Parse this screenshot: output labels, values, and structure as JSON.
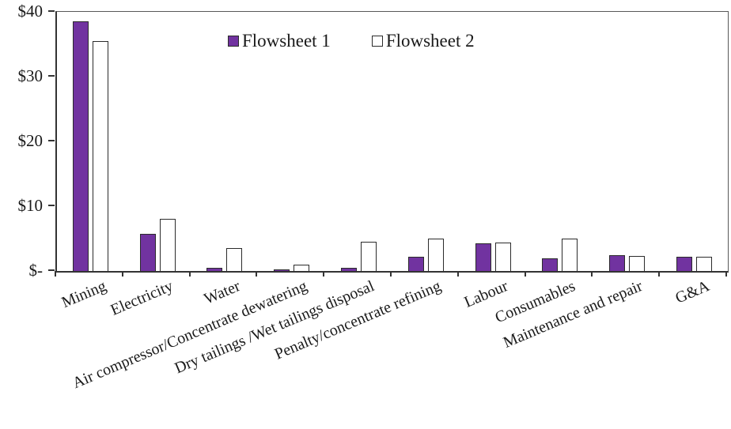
{
  "chart_data": {
    "type": "bar",
    "title": "",
    "xlabel": "",
    "ylabel": "",
    "ylim": [
      0,
      40
    ],
    "grid": false,
    "legend_position": "top-center",
    "yticks": [
      {
        "label": "$-",
        "value": 0
      },
      {
        "label": "$10",
        "value": 10
      },
      {
        "label": "$20",
        "value": 20
      },
      {
        "label": "$30",
        "value": 30
      },
      {
        "label": "$40",
        "value": 40
      }
    ],
    "categories": [
      "Mining",
      "Electricity",
      "Water",
      "Air compressor/Concentrate dewatering",
      "Dry tailings /Wet tailings disposal",
      "Penalty/concentrate refining",
      "Labour",
      "Consumables",
      "Maintenance and repair",
      "G&A"
    ],
    "series": [
      {
        "name": "Flowsheet 1",
        "color": "#7133A0",
        "values": [
          38.5,
          5.7,
          0.5,
          0.2,
          0.5,
          2.2,
          4.3,
          2.0,
          2.4,
          2.2
        ]
      },
      {
        "name": "Flowsheet 2",
        "color": "#FFFFFF",
        "values": [
          35.5,
          8.0,
          3.5,
          1.0,
          4.5,
          5.0,
          4.4,
          5.0,
          2.3,
          2.2
        ]
      }
    ],
    "colors": {
      "bar_border": "#2b2b2b",
      "axis": "#333333",
      "text": "#1a1a1a"
    }
  }
}
